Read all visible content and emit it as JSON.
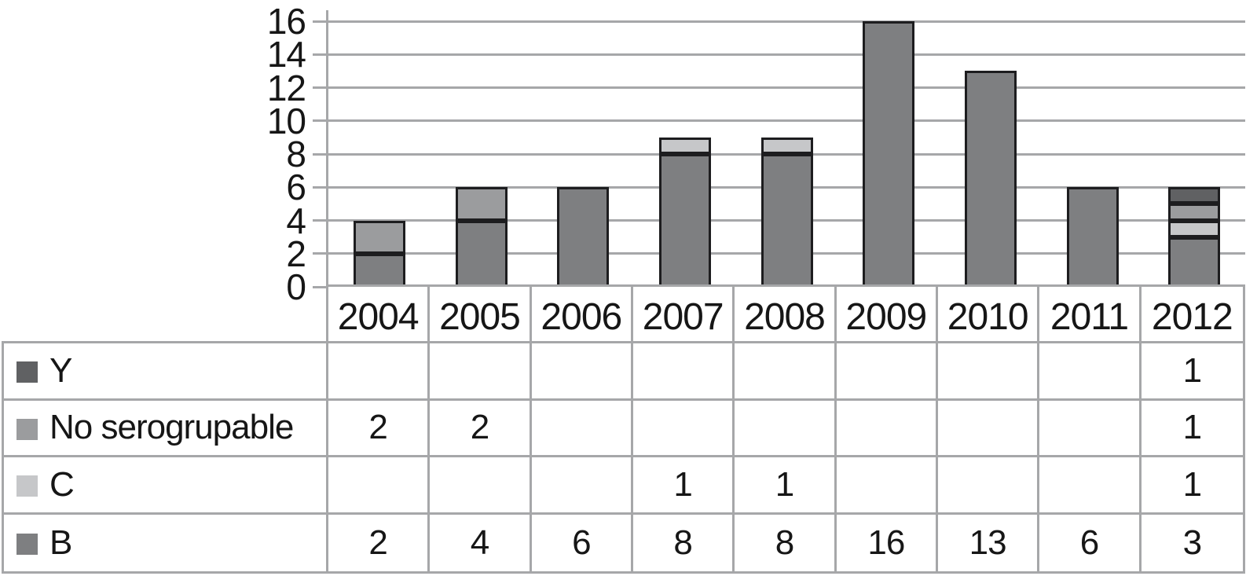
{
  "chart_data": {
    "type": "bar",
    "stacked": true,
    "title": "",
    "xlabel": "",
    "ylabel": "",
    "categories": [
      "2004",
      "2005",
      "2006",
      "2007",
      "2008",
      "2009",
      "2010",
      "2011",
      "2012"
    ],
    "series": [
      {
        "name": "B",
        "color": "#7e7f81",
        "values": [
          2,
          4,
          6,
          8,
          8,
          16,
          13,
          6,
          3
        ]
      },
      {
        "name": "C",
        "color": "#c6c7c9",
        "values": [
          0,
          0,
          0,
          1,
          1,
          0,
          0,
          0,
          1
        ]
      },
      {
        "name": "No serogrupable",
        "color": "#9b9c9e",
        "values": [
          2,
          2,
          0,
          0,
          0,
          0,
          0,
          0,
          1
        ]
      },
      {
        "name": "Y",
        "color": "#606163",
        "values": [
          0,
          0,
          0,
          0,
          0,
          0,
          0,
          0,
          1
        ]
      }
    ],
    "ylim": [
      0,
      16
    ],
    "yticks": [
      0,
      2,
      4,
      6,
      8,
      10,
      12,
      14,
      16
    ],
    "grid": true,
    "legend_position": "table-left"
  },
  "table": {
    "header_years": [
      "2004",
      "2005",
      "2006",
      "2007",
      "2008",
      "2009",
      "2010",
      "2011",
      "2012"
    ],
    "rows": [
      {
        "label": "Y",
        "swatch": "#606163",
        "values": [
          "",
          "",
          "",
          "",
          "",
          "",
          "",
          "",
          "1"
        ]
      },
      {
        "label": "No serogrupable",
        "swatch": "#9b9c9e",
        "values": [
          "2",
          "2",
          "",
          "",
          "",
          "",
          "",
          "",
          "1"
        ]
      },
      {
        "label": "C",
        "swatch": "#c6c7c9",
        "values": [
          "",
          "",
          "",
          "1",
          "1",
          "",
          "",
          "",
          "1"
        ]
      },
      {
        "label": "B",
        "swatch": "#7e7f81",
        "values": [
          "2",
          "4",
          "6",
          "8",
          "8",
          "16",
          "13",
          "6",
          "3"
        ]
      }
    ]
  },
  "colors": {
    "grid": "#a6a7a9",
    "table_border": "#a6a7a9",
    "bar_border": "#1d1d1f",
    "text": "#161616",
    "background": "#ffffff"
  }
}
